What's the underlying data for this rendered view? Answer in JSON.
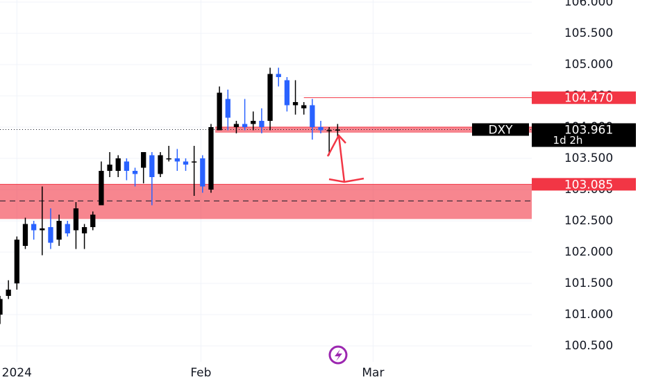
{
  "chart_data": {
    "type": "candlestick",
    "symbol": "DXY",
    "up_color": "#000000",
    "down_color": "#2962ff",
    "x": [
      -2,
      -1,
      0,
      1,
      2,
      3,
      4,
      5,
      6,
      7,
      8,
      9,
      10,
      11,
      12,
      13,
      14,
      15,
      16,
      17,
      18,
      19,
      20,
      21,
      22,
      23,
      24,
      25,
      26,
      27,
      28,
      29,
      30,
      31,
      32,
      33,
      34,
      35,
      36,
      37,
      38
    ],
    "open": [
      101.0,
      101.3,
      101.5,
      102.1,
      102.45,
      102.35,
      102.4,
      102.2,
      102.45,
      102.35,
      102.3,
      102.4,
      102.75,
      103.3,
      103.3,
      103.45,
      103.3,
      103.35,
      103.55,
      103.25,
      103.5,
      103.5,
      103.45,
      103.45,
      103.5,
      103.0,
      103.95,
      104.45,
      104.0,
      104.05,
      104.05,
      104.1,
      104.1,
      104.85,
      104.75,
      104.35,
      104.3,
      104.35,
      104.0,
      103.95,
      103.95
    ],
    "high": [
      101.3,
      101.55,
      102.25,
      102.55,
      102.5,
      103.05,
      102.7,
      102.6,
      102.5,
      102.8,
      102.45,
      102.65,
      103.45,
      103.6,
      103.55,
      103.5,
      103.35,
      103.6,
      103.6,
      103.6,
      103.7,
      103.65,
      103.5,
      103.7,
      103.55,
      104.05,
      104.65,
      104.6,
      104.1,
      104.45,
      104.25,
      104.3,
      104.95,
      104.95,
      104.8,
      104.75,
      104.4,
      104.45,
      104.1,
      104.0,
      104.05
    ],
    "low": [
      100.85,
      101.25,
      101.4,
      102.05,
      102.2,
      101.95,
      102.05,
      102.1,
      102.25,
      102.05,
      102.05,
      102.35,
      102.75,
      103.2,
      103.2,
      103.15,
      103.05,
      103.1,
      102.75,
      103.2,
      103.45,
      103.3,
      103.3,
      102.9,
      102.95,
      102.95,
      103.95,
      103.95,
      103.9,
      103.95,
      103.95,
      103.9,
      103.95,
      104.65,
      104.25,
      104.2,
      104.2,
      103.8,
      103.9,
      103.55,
      103.85
    ],
    "close": [
      101.25,
      101.4,
      102.2,
      102.45,
      102.35,
      102.38,
      102.15,
      102.5,
      102.3,
      102.7,
      102.4,
      102.6,
      103.3,
      103.4,
      103.5,
      103.3,
      103.25,
      103.6,
      103.2,
      103.55,
      103.5,
      103.45,
      103.4,
      103.45,
      103.05,
      104.0,
      104.55,
      104.15,
      104.05,
      104.0,
      104.1,
      104.0,
      104.85,
      104.8,
      104.35,
      104.4,
      104.35,
      104.0,
      103.95,
      103.95,
      103.96
    ],
    "xlim": [
      -2,
      61
    ],
    "ylim": [
      100.467,
      106.033
    ],
    "xticks": [
      {
        "value": 0,
        "label": "2024"
      },
      {
        "value": 21.8,
        "label": "Feb"
      },
      {
        "value": 42.2,
        "label": "Mar"
      }
    ],
    "yticks": [
      {
        "value": 106,
        "label": "106.000"
      },
      {
        "value": 105.5,
        "label": "105.500"
      },
      {
        "value": 105,
        "label": "105.000"
      },
      {
        "value": 104.5,
        "label": "104.500"
      },
      {
        "value": 104,
        "label": "104.000"
      },
      {
        "value": 103.5,
        "label": "103.500"
      },
      {
        "value": 103,
        "label": "103.000"
      },
      {
        "value": 102.5,
        "label": "102.500"
      },
      {
        "value": 102,
        "label": "102.000"
      },
      {
        "value": 101.5,
        "label": "101.500"
      },
      {
        "value": 101,
        "label": "101.000"
      },
      {
        "value": 100.5,
        "label": "100.500"
      }
    ],
    "grid": true,
    "zones": [
      {
        "from": 103.085,
        "to": 102.53,
        "x_from": -2
      },
      {
        "from": 104.0,
        "to": 103.91,
        "x_from": 23.5
      }
    ],
    "dashed_level": 102.82,
    "resistance": {
      "value": 104.47,
      "label": "104.470",
      "x_from": 34.0
    },
    "support_label": {
      "value": 103.085,
      "label": "103.085"
    },
    "last_price": {
      "value": 103.961,
      "label": "103.961"
    },
    "countdown": "1d 2h"
  }
}
